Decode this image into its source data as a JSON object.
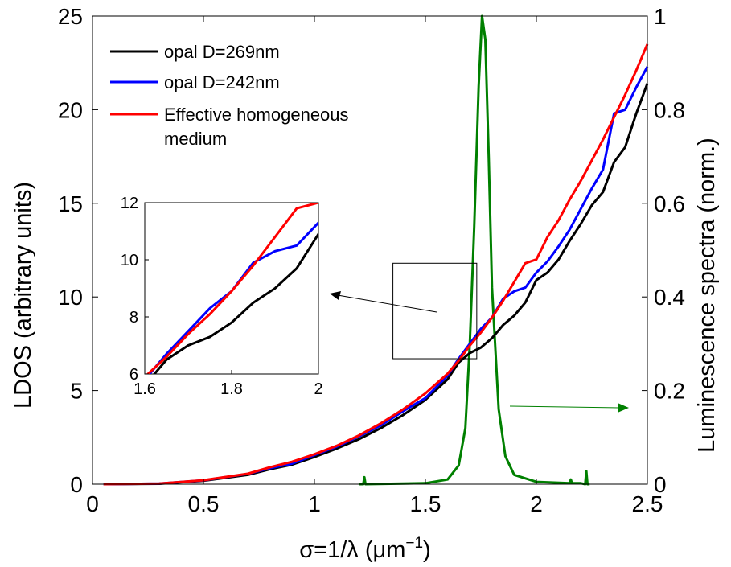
{
  "chart_data": {
    "type": "line",
    "xlabel": "σ=1/λ (μm",
    "xlabel_sup": "−1",
    "xlabel_end": ")",
    "ylabel_left": "LDOS (arbitrary units)",
    "ylabel_right": "Luminescence spectra (norm.)",
    "xlim": [
      0,
      2.5
    ],
    "ylim_left": [
      0,
      25
    ],
    "ylim_right": [
      0,
      1
    ],
    "x_ticks": [
      "0",
      "0.5",
      "1",
      "1.5",
      "2",
      "2.5"
    ],
    "y_left_ticks": [
      "0",
      "5",
      "10",
      "15",
      "20",
      "25"
    ],
    "y_right_ticks": [
      "0",
      "0.2",
      "0.4",
      "0.6",
      "0.8",
      "1"
    ],
    "legend_position": "top-left",
    "grid": false,
    "series": [
      {
        "name": "opal D=269nm",
        "axis": "left",
        "color": "#000000",
        "x": [
          0.05,
          0.3,
          0.5,
          0.7,
          0.8,
          0.9,
          1.0,
          1.1,
          1.2,
          1.3,
          1.4,
          1.5,
          1.6,
          1.65,
          1.7,
          1.75,
          1.8,
          1.85,
          1.9,
          1.95,
          2.0,
          2.05,
          2.1,
          2.15,
          2.2,
          2.25,
          2.3,
          2.35,
          2.4,
          2.45,
          2.5
        ],
        "y": [
          0,
          0.02,
          0.18,
          0.5,
          0.8,
          1.05,
          1.45,
          1.9,
          2.4,
          3.0,
          3.7,
          4.5,
          5.6,
          6.5,
          7.0,
          7.3,
          7.8,
          8.5,
          9.0,
          9.7,
          10.9,
          11.3,
          12.0,
          13.0,
          13.9,
          14.9,
          15.6,
          17.2,
          18.0,
          19.8,
          21.4
        ]
      },
      {
        "name": "opal D=242nm",
        "axis": "left",
        "color": "#0000ff",
        "x": [
          0.05,
          0.3,
          0.5,
          0.7,
          0.8,
          0.9,
          1.0,
          1.1,
          1.2,
          1.3,
          1.4,
          1.5,
          1.6,
          1.65,
          1.7,
          1.75,
          1.8,
          1.85,
          1.9,
          1.95,
          2.0,
          2.05,
          2.1,
          2.15,
          2.2,
          2.25,
          2.3,
          2.35,
          2.4,
          2.45,
          2.5
        ],
        "y": [
          0,
          0.03,
          0.2,
          0.55,
          0.85,
          1.1,
          1.55,
          2.0,
          2.55,
          3.15,
          3.9,
          4.6,
          5.8,
          6.7,
          7.5,
          8.3,
          8.9,
          9.9,
          10.3,
          10.5,
          11.3,
          11.9,
          12.7,
          13.6,
          14.7,
          15.8,
          16.8,
          19.8,
          20.0,
          21.2,
          22.3
        ]
      },
      {
        "name": "Effective homogeneous medium",
        "axis": "left",
        "color": "#ff0000",
        "x": [
          0.05,
          0.3,
          0.5,
          0.7,
          0.8,
          0.9,
          1.0,
          1.1,
          1.2,
          1.3,
          1.4,
          1.5,
          1.6,
          1.65,
          1.7,
          1.75,
          1.8,
          1.85,
          1.9,
          1.95,
          2.0,
          2.05,
          2.1,
          2.15,
          2.2,
          2.25,
          2.3,
          2.35,
          2.4,
          2.45,
          2.5
        ],
        "y": [
          0,
          0.03,
          0.21,
          0.56,
          0.9,
          1.2,
          1.6,
          2.05,
          2.6,
          3.25,
          4.0,
          4.85,
          5.9,
          6.6,
          7.4,
          8.1,
          8.9,
          9.8,
          10.8,
          11.8,
          12.0,
          13.2,
          14.1,
          15.2,
          16.2,
          17.3,
          18.4,
          19.6,
          20.8,
          22.1,
          23.5
        ]
      },
      {
        "name": "",
        "axis": "right",
        "color": "#008000",
        "x": [
          1.2,
          1.22,
          1.225,
          1.23,
          1.5,
          1.6,
          1.65,
          1.68,
          1.7,
          1.72,
          1.74,
          1.755,
          1.77,
          1.785,
          1.8,
          1.83,
          1.86,
          1.9,
          2.0,
          2.15,
          2.155,
          2.16,
          2.2,
          2.22,
          2.225,
          2.23,
          2.24
        ],
        "y": [
          0.0,
          0.0,
          0.015,
          0.0,
          0.002,
          0.01,
          0.04,
          0.12,
          0.3,
          0.55,
          0.85,
          1.0,
          0.95,
          0.7,
          0.42,
          0.16,
          0.06,
          0.02,
          0.005,
          0.002,
          0.01,
          0.002,
          0.002,
          0.0,
          0.028,
          0.0,
          0.0
        ]
      }
    ],
    "inset": {
      "xlim": [
        1.6,
        2.0
      ],
      "ylim": [
        6,
        12
      ],
      "x_ticks": [
        "1.6",
        "1.8",
        "2"
      ],
      "y_ticks": [
        "6",
        "8",
        "10",
        "12"
      ],
      "source_box_xlim": [
        1.6,
        2.0
      ],
      "source_box_ylim": [
        6.7,
        11.8
      ]
    }
  },
  "colors": {
    "opal_269": "#000000",
    "opal_242": "#0000ff",
    "effective": "#ff0000",
    "luminescence": "#008000"
  }
}
